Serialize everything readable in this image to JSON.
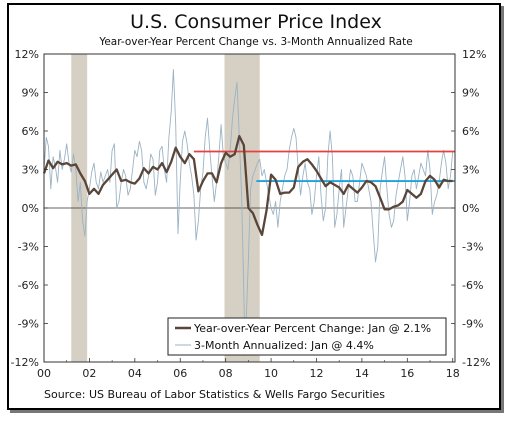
{
  "chart_data": {
    "type": "line",
    "title": "U.S. Consumer Price Index",
    "subtitle": "Year-over-Year Percent Change vs. 3-Month Annualized Rate",
    "source": "Source: US Bureau of Labor Statistics & Wells Fargo Securities",
    "xlim": [
      2000.0,
      2018.1
    ],
    "ylim": [
      -12,
      12
    ],
    "yticks_left": [
      "12%",
      "9%",
      "6%",
      "3%",
      "0%",
      "-3%",
      "-6%",
      "-9%",
      "-12%"
    ],
    "yticks_right": [
      "12%",
      "9%",
      "6%",
      "3%",
      "0%",
      "-3%",
      "-6%",
      "-9%",
      "-12%"
    ],
    "ytick_values": [
      12,
      9,
      6,
      3,
      0,
      -3,
      -6,
      -9,
      -12
    ],
    "xticks": [
      "00",
      "02",
      "04",
      "06",
      "08",
      "10",
      "12",
      "14",
      "16",
      "18"
    ],
    "xtick_values": [
      2000,
      2002,
      2004,
      2006,
      2008,
      2010,
      2012,
      2014,
      2016,
      2018
    ],
    "recessions": [
      [
        2001.2,
        2001.9
      ],
      [
        2007.95,
        2009.5
      ]
    ],
    "reference_lines": [
      {
        "y": 4.4,
        "x_start": 2006.6,
        "x_end": 2018.1,
        "color": "#e8403f"
      },
      {
        "y": 2.1,
        "x_start": 2009.35,
        "x_end": 2018.1,
        "color": "#1ea2dc"
      }
    ],
    "legend_placement": "bottom-right",
    "series": [
      {
        "name": "Year-over-Year Percent Change: Jan @ 2.1%",
        "color": "#5a4638",
        "width": 2.3,
        "points": [
          [
            2000.0,
            2.7
          ],
          [
            2000.2,
            3.7
          ],
          [
            2000.4,
            3.1
          ],
          [
            2000.6,
            3.6
          ],
          [
            2000.8,
            3.4
          ],
          [
            2001.0,
            3.5
          ],
          [
            2001.2,
            3.3
          ],
          [
            2001.4,
            3.4
          ],
          [
            2001.6,
            2.7
          ],
          [
            2001.8,
            2.1
          ],
          [
            2002.0,
            1.1
          ],
          [
            2002.2,
            1.5
          ],
          [
            2002.4,
            1.1
          ],
          [
            2002.6,
            1.8
          ],
          [
            2002.8,
            2.2
          ],
          [
            2003.0,
            2.6
          ],
          [
            2003.2,
            3.0
          ],
          [
            2003.4,
            2.1
          ],
          [
            2003.6,
            2.2
          ],
          [
            2003.8,
            2.0
          ],
          [
            2004.0,
            1.9
          ],
          [
            2004.2,
            2.3
          ],
          [
            2004.4,
            3.1
          ],
          [
            2004.6,
            2.7
          ],
          [
            2004.8,
            3.2
          ],
          [
            2005.0,
            3.0
          ],
          [
            2005.2,
            3.5
          ],
          [
            2005.4,
            2.8
          ],
          [
            2005.6,
            3.6
          ],
          [
            2005.8,
            4.7
          ],
          [
            2006.0,
            4.0
          ],
          [
            2006.2,
            3.5
          ],
          [
            2006.4,
            4.2
          ],
          [
            2006.6,
            3.8
          ],
          [
            2006.8,
            1.3
          ],
          [
            2007.0,
            2.1
          ],
          [
            2007.2,
            2.7
          ],
          [
            2007.4,
            2.7
          ],
          [
            2007.6,
            2.0
          ],
          [
            2007.8,
            3.5
          ],
          [
            2008.0,
            4.3
          ],
          [
            2008.2,
            4.0
          ],
          [
            2008.4,
            4.2
          ],
          [
            2008.6,
            5.6
          ],
          [
            2008.8,
            4.9
          ],
          [
            2009.0,
            0.0
          ],
          [
            2009.2,
            -0.4
          ],
          [
            2009.4,
            -1.3
          ],
          [
            2009.6,
            -2.1
          ],
          [
            2009.8,
            -0.2
          ],
          [
            2010.0,
            2.6
          ],
          [
            2010.2,
            2.2
          ],
          [
            2010.4,
            1.1
          ],
          [
            2010.6,
            1.2
          ],
          [
            2010.8,
            1.2
          ],
          [
            2011.0,
            1.6
          ],
          [
            2011.2,
            3.2
          ],
          [
            2011.4,
            3.6
          ],
          [
            2011.6,
            3.8
          ],
          [
            2011.8,
            3.4
          ],
          [
            2012.0,
            2.9
          ],
          [
            2012.2,
            2.3
          ],
          [
            2012.4,
            1.7
          ],
          [
            2012.6,
            2.0
          ],
          [
            2012.8,
            1.8
          ],
          [
            2013.0,
            1.6
          ],
          [
            2013.2,
            1.1
          ],
          [
            2013.4,
            1.8
          ],
          [
            2013.6,
            1.5
          ],
          [
            2013.8,
            1.2
          ],
          [
            2014.0,
            1.6
          ],
          [
            2014.2,
            2.1
          ],
          [
            2014.4,
            2.0
          ],
          [
            2014.6,
            1.7
          ],
          [
            2014.8,
            0.8
          ],
          [
            2015.0,
            -0.1
          ],
          [
            2015.2,
            -0.1
          ],
          [
            2015.4,
            0.1
          ],
          [
            2015.6,
            0.2
          ],
          [
            2015.8,
            0.5
          ],
          [
            2016.0,
            1.4
          ],
          [
            2016.2,
            1.1
          ],
          [
            2016.4,
            0.8
          ],
          [
            2016.6,
            1.1
          ],
          [
            2016.8,
            2.1
          ],
          [
            2017.0,
            2.5
          ],
          [
            2017.2,
            2.2
          ],
          [
            2017.4,
            1.6
          ],
          [
            2017.6,
            2.2
          ],
          [
            2017.8,
            2.1
          ],
          [
            2018.0,
            2.1
          ]
        ]
      },
      {
        "name": "3-Month Annualized: Jan @ 4.4%",
        "color": "#9bb3c4",
        "width": 0.9,
        "points": [
          [
            2000.0,
            3.0
          ],
          [
            2000.1,
            5.5
          ],
          [
            2000.2,
            4.8
          ],
          [
            2000.3,
            1.5
          ],
          [
            2000.4,
            4.0
          ],
          [
            2000.5,
            3.2
          ],
          [
            2000.6,
            2.0
          ],
          [
            2000.7,
            4.5
          ],
          [
            2000.8,
            3.0
          ],
          [
            2000.9,
            3.8
          ],
          [
            2001.0,
            5.0
          ],
          [
            2001.1,
            3.5
          ],
          [
            2001.2,
            2.8
          ],
          [
            2001.3,
            4.2
          ],
          [
            2001.4,
            3.0
          ],
          [
            2001.5,
            0.5
          ],
          [
            2001.6,
            2.0
          ],
          [
            2001.7,
            -1.0
          ],
          [
            2001.8,
            -2.2
          ],
          [
            2001.9,
            0.5
          ],
          [
            2002.0,
            1.5
          ],
          [
            2002.1,
            2.8
          ],
          [
            2002.2,
            3.5
          ],
          [
            2002.3,
            2.0
          ],
          [
            2002.4,
            1.5
          ],
          [
            2002.5,
            2.8
          ],
          [
            2002.6,
            2.0
          ],
          [
            2002.7,
            2.5
          ],
          [
            2002.8,
            3.0
          ],
          [
            2002.9,
            2.0
          ],
          [
            2003.0,
            4.5
          ],
          [
            2003.1,
            5.0
          ],
          [
            2003.2,
            0.0
          ],
          [
            2003.3,
            0.5
          ],
          [
            2003.4,
            2.0
          ],
          [
            2003.5,
            3.0
          ],
          [
            2003.6,
            2.5
          ],
          [
            2003.7,
            1.0
          ],
          [
            2003.8,
            1.5
          ],
          [
            2003.9,
            3.0
          ],
          [
            2004.0,
            4.5
          ],
          [
            2004.1,
            4.0
          ],
          [
            2004.2,
            5.2
          ],
          [
            2004.3,
            4.5
          ],
          [
            2004.4,
            2.0
          ],
          [
            2004.5,
            1.5
          ],
          [
            2004.6,
            2.5
          ],
          [
            2004.7,
            4.2
          ],
          [
            2004.8,
            3.8
          ],
          [
            2004.9,
            1.0
          ],
          [
            2005.0,
            2.0
          ],
          [
            2005.1,
            4.5
          ],
          [
            2005.2,
            4.8
          ],
          [
            2005.3,
            3.0
          ],
          [
            2005.4,
            2.0
          ],
          [
            2005.5,
            5.5
          ],
          [
            2005.6,
            7.5
          ],
          [
            2005.7,
            10.8
          ],
          [
            2005.8,
            6.5
          ],
          [
            2005.9,
            -2.0
          ],
          [
            2006.0,
            2.0
          ],
          [
            2006.1,
            5.2
          ],
          [
            2006.2,
            6.0
          ],
          [
            2006.3,
            5.0
          ],
          [
            2006.4,
            3.5
          ],
          [
            2006.5,
            2.5
          ],
          [
            2006.6,
            1.0
          ],
          [
            2006.7,
            -2.5
          ],
          [
            2006.8,
            -1.0
          ],
          [
            2006.9,
            1.5
          ],
          [
            2007.0,
            2.8
          ],
          [
            2007.1,
            5.5
          ],
          [
            2007.2,
            7.0
          ],
          [
            2007.3,
            4.5
          ],
          [
            2007.4,
            2.5
          ],
          [
            2007.5,
            0.5
          ],
          [
            2007.6,
            2.0
          ],
          [
            2007.7,
            4.0
          ],
          [
            2007.8,
            6.5
          ],
          [
            2007.9,
            4.0
          ],
          [
            2008.0,
            3.5
          ],
          [
            2008.1,
            3.0
          ],
          [
            2008.2,
            4.5
          ],
          [
            2008.3,
            7.0
          ],
          [
            2008.4,
            8.5
          ],
          [
            2008.5,
            9.8
          ],
          [
            2008.6,
            5.5
          ],
          [
            2008.7,
            1.0
          ],
          [
            2008.8,
            -6.5
          ],
          [
            2008.85,
            -11.5
          ],
          [
            2008.9,
            -9.0
          ],
          [
            2009.0,
            -4.0
          ],
          [
            2009.1,
            1.5
          ],
          [
            2009.2,
            2.5
          ],
          [
            2009.3,
            3.0
          ],
          [
            2009.4,
            3.5
          ],
          [
            2009.5,
            3.8
          ],
          [
            2009.6,
            2.5
          ],
          [
            2009.7,
            3.0
          ],
          [
            2009.8,
            2.0
          ],
          [
            2009.9,
            1.0
          ],
          [
            2010.0,
            0.0
          ],
          [
            2010.1,
            -0.5
          ],
          [
            2010.2,
            0.5
          ],
          [
            2010.3,
            -1.5
          ],
          [
            2010.4,
            0.5
          ],
          [
            2010.5,
            1.5
          ],
          [
            2010.6,
            2.5
          ],
          [
            2010.7,
            3.0
          ],
          [
            2010.8,
            4.5
          ],
          [
            2010.9,
            5.5
          ],
          [
            2011.0,
            6.2
          ],
          [
            2011.1,
            5.5
          ],
          [
            2011.2,
            3.0
          ],
          [
            2011.3,
            1.0
          ],
          [
            2011.4,
            2.5
          ],
          [
            2011.5,
            3.5
          ],
          [
            2011.6,
            2.0
          ],
          [
            2011.7,
            1.5
          ],
          [
            2011.8,
            -0.5
          ],
          [
            2011.9,
            0.5
          ],
          [
            2012.0,
            2.5
          ],
          [
            2012.1,
            4.0
          ],
          [
            2012.2,
            1.0
          ],
          [
            2012.3,
            -1.0
          ],
          [
            2012.4,
            0.0
          ],
          [
            2012.5,
            4.0
          ],
          [
            2012.6,
            6.0
          ],
          [
            2012.7,
            4.0
          ],
          [
            2012.8,
            -1.5
          ],
          [
            2012.9,
            -0.5
          ],
          [
            2013.0,
            1.5
          ],
          [
            2013.1,
            3.0
          ],
          [
            2013.2,
            -1.5
          ],
          [
            2013.3,
            0.0
          ],
          [
            2013.4,
            1.5
          ],
          [
            2013.5,
            3.0
          ],
          [
            2013.6,
            2.5
          ],
          [
            2013.7,
            0.5
          ],
          [
            2013.8,
            0.5
          ],
          [
            2013.9,
            2.0
          ],
          [
            2014.0,
            3.5
          ],
          [
            2014.1,
            3.0
          ],
          [
            2014.2,
            2.5
          ],
          [
            2014.3,
            1.5
          ],
          [
            2014.4,
            0.5
          ],
          [
            2014.5,
            -2.0
          ],
          [
            2014.6,
            -4.2
          ],
          [
            2014.7,
            -3.0
          ],
          [
            2014.8,
            1.5
          ],
          [
            2014.9,
            2.8
          ],
          [
            2015.0,
            4.0
          ],
          [
            2015.1,
            1.5
          ],
          [
            2015.2,
            -0.5
          ],
          [
            2015.3,
            -1.5
          ],
          [
            2015.4,
            -1.0
          ],
          [
            2015.5,
            1.0
          ],
          [
            2015.6,
            2.0
          ],
          [
            2015.7,
            3.0
          ],
          [
            2015.8,
            4.0
          ],
          [
            2015.9,
            2.5
          ],
          [
            2016.0,
            -1.0
          ],
          [
            2016.1,
            0.5
          ],
          [
            2016.2,
            2.5
          ],
          [
            2016.3,
            3.0
          ],
          [
            2016.4,
            1.5
          ],
          [
            2016.5,
            2.5
          ],
          [
            2016.6,
            3.5
          ],
          [
            2016.7,
            3.0
          ],
          [
            2016.8,
            2.5
          ],
          [
            2016.9,
            4.5
          ],
          [
            2017.0,
            3.0
          ],
          [
            2017.1,
            -0.5
          ],
          [
            2017.2,
            0.5
          ],
          [
            2017.3,
            1.0
          ],
          [
            2017.4,
            2.0
          ],
          [
            2017.5,
            3.5
          ],
          [
            2017.6,
            4.5
          ],
          [
            2017.7,
            3.5
          ],
          [
            2017.8,
            1.5
          ],
          [
            2017.9,
            2.5
          ],
          [
            2018.0,
            4.4
          ]
        ]
      }
    ]
  }
}
